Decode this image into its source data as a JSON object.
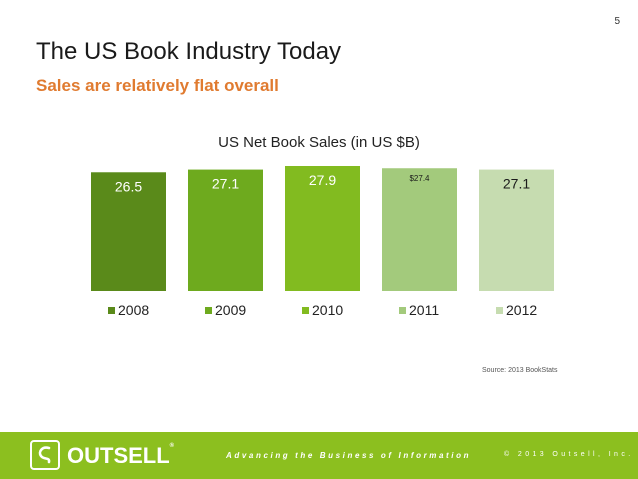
{
  "page_number": "5",
  "title": "The US Book Industry Today",
  "subtitle": "Sales are relatively flat overall",
  "source": "Source: 2013 BookStats",
  "footer": {
    "logo_text": "OUTSELL",
    "logo_reg": "®",
    "tagline": "Advancing the Business of Information",
    "copyright": "© 2013 Outsell, Inc."
  },
  "colors": {
    "accent_orange": "#e07b30",
    "footer_green": "#8cbf1f",
    "series": [
      "#5a8a1a",
      "#6eaa1e",
      "#82bb20",
      "#a3ca7c",
      "#c6dcb0"
    ]
  },
  "chart_data": {
    "type": "bar",
    "title": "US Net Book Sales (in US $B)",
    "categories": [
      "2008",
      "2009",
      "2010",
      "2011",
      "2012"
    ],
    "values": [
      26.5,
      27.1,
      27.9,
      27.4,
      27.1
    ],
    "data_labels": [
      "26.5",
      "27.1",
      "27.9",
      "$27.4",
      "27.1"
    ],
    "xlabel": "",
    "ylabel": "",
    "legend": "bottom",
    "grid": false
  }
}
